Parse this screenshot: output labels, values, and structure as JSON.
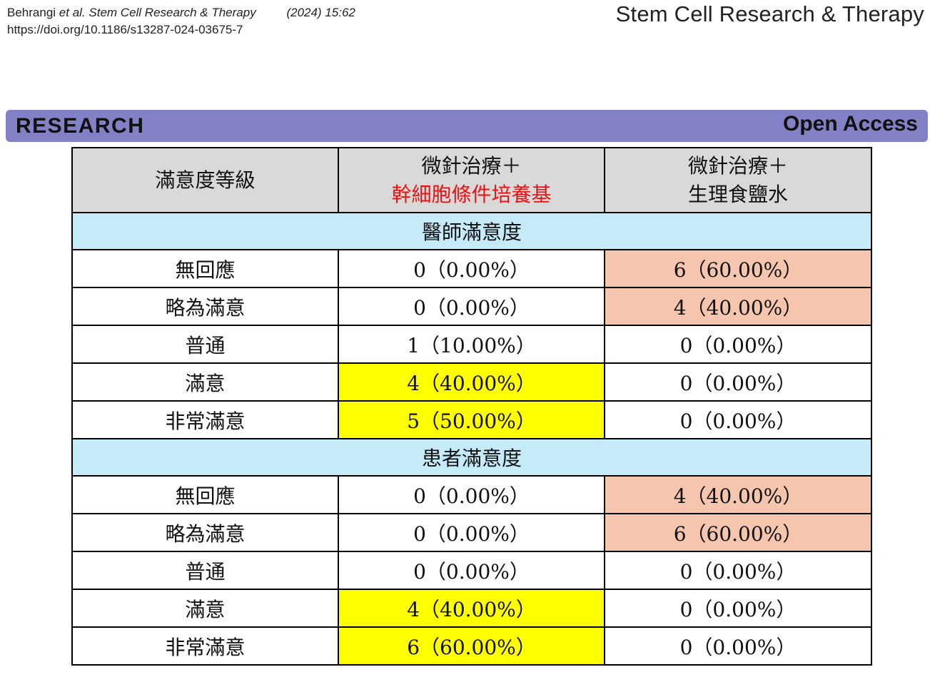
{
  "header": {
    "authors": "Behrangi",
    "et_al": "et al.",
    "journal_short": "Stem Cell Research & Therapy",
    "year_info": "(2024) 15:62",
    "doi": "https://doi.org/10.1186/s13287-024-03675-7",
    "journal_name": "Stem Cell Research & Therapy"
  },
  "banner": {
    "left": "RESEARCH",
    "right": "Open Access"
  },
  "colors": {
    "banner": "#8381c5",
    "section_bg": "#c5eaf8",
    "highlight_yellow": "#ffff00",
    "highlight_salmon": "#f5c6ad",
    "red_text": "#ee1111"
  },
  "table": {
    "col0_header": "滿意度等級",
    "col1_header_line1": "微針治療＋",
    "col1_header_line2": "幹細胞條件培養基",
    "col2_header_line1": "微針治療＋",
    "col2_header_line2": "生理食鹽水",
    "sections": [
      {
        "title": "醫師滿意度",
        "rows": [
          {
            "label": "無回應",
            "a": "0（0.00%）",
            "b": "6（60.00%）",
            "a_hl": "",
            "b_hl": "salmon"
          },
          {
            "label": "略為滿意",
            "a": "0（0.00%）",
            "b": "4（40.00%）",
            "a_hl": "",
            "b_hl": "salmon"
          },
          {
            "label": "普通",
            "a": "1（10.00%）",
            "b": "0（0.00%）",
            "a_hl": "",
            "b_hl": ""
          },
          {
            "label": "滿意",
            "a": "4（40.00%）",
            "b": "0（0.00%）",
            "a_hl": "yellow",
            "b_hl": ""
          },
          {
            "label": "非常滿意",
            "a": "5（50.00%）",
            "b": "0（0.00%）",
            "a_hl": "yellow",
            "b_hl": ""
          }
        ]
      },
      {
        "title": "患者滿意度",
        "rows": [
          {
            "label": "無回應",
            "a": "0（0.00%）",
            "b": "4（40.00%）",
            "a_hl": "",
            "b_hl": "salmon"
          },
          {
            "label": "略為滿意",
            "a": "0（0.00%）",
            "b": "6（60.00%）",
            "a_hl": "",
            "b_hl": "salmon"
          },
          {
            "label": "普通",
            "a": "0（0.00%）",
            "b": "0（0.00%）",
            "a_hl": "",
            "b_hl": ""
          },
          {
            "label": "滿意",
            "a": "4（40.00%）",
            "b": "0（0.00%）",
            "a_hl": "yellow",
            "b_hl": ""
          },
          {
            "label": "非常滿意",
            "a": "6（60.00%）",
            "b": "0（0.00%）",
            "a_hl": "yellow",
            "b_hl": ""
          }
        ]
      }
    ]
  }
}
